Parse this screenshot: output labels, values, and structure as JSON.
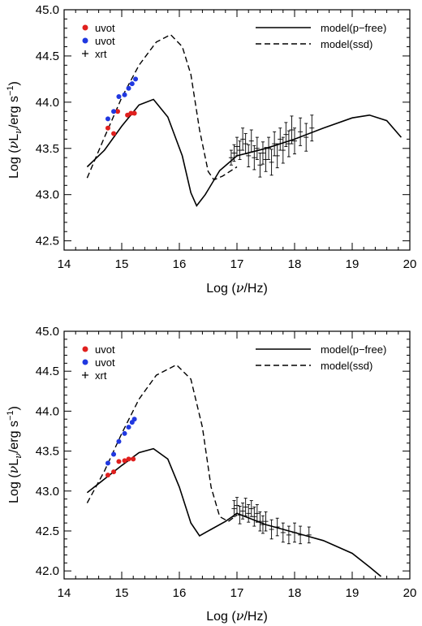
{
  "chart_data": [
    {
      "type": "scatter",
      "xlabel": "Log (ν/Hz)",
      "ylabel": "Log (νL_ν/erg s^-1)",
      "xlim": [
        14,
        20
      ],
      "ylim": [
        42.4,
        45.0
      ],
      "x_ticks": [
        "14",
        "15",
        "16",
        "17",
        "18",
        "19",
        "20"
      ],
      "y_ticks": [
        "42.5",
        "43.0",
        "43.5",
        "44.0",
        "44.5",
        "45.0"
      ],
      "grid": false,
      "legend_points": [
        {
          "name": "uvot",
          "color": "#e0201e",
          "marker": "dot"
        },
        {
          "name": "uvot",
          "color": "#2038e0",
          "marker": "dot"
        },
        {
          "name": "xrt",
          "color": "#000000",
          "marker": "plus"
        }
      ],
      "legend_lines": [
        {
          "name": "model(p−free)",
          "style": "solid"
        },
        {
          "name": "model(ssd)",
          "style": "dashed"
        }
      ],
      "uvot_red": [
        [
          14.76,
          43.72
        ],
        [
          14.86,
          43.66
        ],
        [
          14.93,
          43.9
        ],
        [
          15.1,
          43.86
        ],
        [
          15.16,
          43.88
        ],
        [
          15.22,
          43.88
        ]
      ],
      "uvot_blue": [
        [
          14.76,
          43.82
        ],
        [
          14.86,
          43.9
        ],
        [
          14.95,
          44.06
        ],
        [
          15.05,
          44.08
        ],
        [
          15.12,
          44.15
        ],
        [
          15.18,
          44.2
        ],
        [
          15.24,
          44.25
        ]
      ],
      "model_pfree": [
        [
          14.4,
          43.3
        ],
        [
          14.7,
          43.48
        ],
        [
          15.0,
          43.74
        ],
        [
          15.3,
          43.97
        ],
        [
          15.55,
          44.03
        ],
        [
          15.8,
          43.84
        ],
        [
          16.05,
          43.42
        ],
        [
          16.2,
          43.02
        ],
        [
          16.3,
          42.88
        ],
        [
          16.45,
          43.0
        ],
        [
          16.7,
          43.26
        ],
        [
          17.0,
          43.42
        ],
        [
          17.5,
          43.5
        ],
        [
          18.0,
          43.6
        ],
        [
          18.5,
          43.72
        ],
        [
          19.0,
          43.83
        ],
        [
          19.3,
          43.86
        ],
        [
          19.6,
          43.8
        ],
        [
          19.85,
          43.62
        ]
      ],
      "model_ssd": [
        [
          14.4,
          43.18
        ],
        [
          14.7,
          43.62
        ],
        [
          15.0,
          44.05
        ],
        [
          15.3,
          44.4
        ],
        [
          15.6,
          44.65
        ],
        [
          15.85,
          44.73
        ],
        [
          16.05,
          44.6
        ],
        [
          16.2,
          44.3
        ],
        [
          16.35,
          43.7
        ],
        [
          16.5,
          43.25
        ],
        [
          16.6,
          43.16
        ],
        [
          16.75,
          43.2
        ],
        [
          17.0,
          43.3
        ]
      ],
      "xrt": [
        [
          16.9,
          43.4,
          0.08
        ],
        [
          16.95,
          43.45,
          0.09
        ],
        [
          17.0,
          43.52,
          0.1
        ],
        [
          17.05,
          43.48,
          0.1
        ],
        [
          17.1,
          43.6,
          0.12
        ],
        [
          17.15,
          43.55,
          0.11
        ],
        [
          17.2,
          43.42,
          0.12
        ],
        [
          17.25,
          43.58,
          0.12
        ],
        [
          17.3,
          43.4,
          0.13
        ],
        [
          17.35,
          43.5,
          0.12
        ],
        [
          17.4,
          43.32,
          0.13
        ],
        [
          17.45,
          43.45,
          0.12
        ],
        [
          17.5,
          43.38,
          0.13
        ],
        [
          17.55,
          43.5,
          0.12
        ],
        [
          17.6,
          43.35,
          0.14
        ],
        [
          17.65,
          43.55,
          0.13
        ],
        [
          17.7,
          43.42,
          0.13
        ],
        [
          17.75,
          43.6,
          0.12
        ],
        [
          17.8,
          43.48,
          0.14
        ],
        [
          17.85,
          43.65,
          0.13
        ],
        [
          17.9,
          43.55,
          0.14
        ],
        [
          17.95,
          43.7,
          0.15
        ],
        [
          18.0,
          43.58,
          0.14
        ],
        [
          18.1,
          43.68,
          0.15
        ],
        [
          18.2,
          43.62,
          0.15
        ],
        [
          18.3,
          43.72,
          0.14
        ]
      ]
    },
    {
      "type": "scatter",
      "xlabel": "Log (ν/Hz)",
      "ylabel": "Log (νL_ν/erg s^-1)",
      "xlim": [
        14,
        20
      ],
      "ylim": [
        41.9,
        45.0
      ],
      "x_ticks": [
        "14",
        "15",
        "16",
        "17",
        "18",
        "19",
        "20"
      ],
      "y_ticks": [
        "42.0",
        "42.5",
        "43.0",
        "43.5",
        "44.0",
        "44.5",
        "45.0"
      ],
      "grid": false,
      "legend_points": [
        {
          "name": "uvot",
          "color": "#e0201e",
          "marker": "dot"
        },
        {
          "name": "uvot",
          "color": "#2038e0",
          "marker": "dot"
        },
        {
          "name": "xrt",
          "color": "#000000",
          "marker": "plus"
        }
      ],
      "legend_lines": [
        {
          "name": "model(p−free)",
          "style": "solid"
        },
        {
          "name": "model(ssd)",
          "style": "dashed"
        }
      ],
      "uvot_red": [
        [
          14.76,
          43.2
        ],
        [
          14.86,
          43.24
        ],
        [
          14.95,
          43.37
        ],
        [
          15.05,
          43.38
        ],
        [
          15.12,
          43.4
        ],
        [
          15.2,
          43.4
        ]
      ],
      "uvot_blue": [
        [
          14.76,
          43.35
        ],
        [
          14.86,
          43.46
        ],
        [
          14.95,
          43.62
        ],
        [
          15.05,
          43.72
        ],
        [
          15.12,
          43.8
        ],
        [
          15.18,
          43.86
        ],
        [
          15.22,
          43.9
        ]
      ],
      "model_pfree": [
        [
          14.4,
          42.98
        ],
        [
          14.7,
          43.15
        ],
        [
          15.0,
          43.32
        ],
        [
          15.3,
          43.48
        ],
        [
          15.55,
          43.53
        ],
        [
          15.8,
          43.4
        ],
        [
          16.0,
          43.05
        ],
        [
          16.2,
          42.6
        ],
        [
          16.35,
          42.44
        ],
        [
          16.55,
          42.52
        ],
        [
          16.8,
          42.62
        ],
        [
          17.0,
          42.72
        ],
        [
          17.5,
          42.58
        ],
        [
          18.0,
          42.48
        ],
        [
          18.5,
          42.38
        ],
        [
          19.0,
          42.22
        ],
        [
          19.3,
          42.05
        ],
        [
          19.5,
          41.93
        ]
      ],
      "model_ssd": [
        [
          14.4,
          42.85
        ],
        [
          14.7,
          43.25
        ],
        [
          15.0,
          43.72
        ],
        [
          15.3,
          44.15
        ],
        [
          15.6,
          44.45
        ],
        [
          15.95,
          44.58
        ],
        [
          16.2,
          44.4
        ],
        [
          16.4,
          43.8
        ],
        [
          16.55,
          43.05
        ],
        [
          16.7,
          42.68
        ],
        [
          16.85,
          42.62
        ],
        [
          17.0,
          42.7
        ]
      ],
      "xrt": [
        [
          16.95,
          42.78,
          0.1
        ],
        [
          17.0,
          42.82,
          0.1
        ],
        [
          17.05,
          42.7,
          0.11
        ],
        [
          17.1,
          42.75,
          0.1
        ],
        [
          17.15,
          42.8,
          0.11
        ],
        [
          17.2,
          42.72,
          0.11
        ],
        [
          17.25,
          42.78,
          0.1
        ],
        [
          17.3,
          42.68,
          0.12
        ],
        [
          17.35,
          42.72,
          0.11
        ],
        [
          17.4,
          42.62,
          0.12
        ],
        [
          17.45,
          42.58,
          0.11
        ],
        [
          17.5,
          42.62,
          0.12
        ],
        [
          17.6,
          42.52,
          0.12
        ],
        [
          17.7,
          42.55,
          0.11
        ],
        [
          17.8,
          42.48,
          0.12
        ],
        [
          17.9,
          42.45,
          0.11
        ],
        [
          18.0,
          42.48,
          0.12
        ],
        [
          18.1,
          42.45,
          0.11
        ],
        [
          18.25,
          42.45,
          0.1
        ]
      ]
    }
  ]
}
